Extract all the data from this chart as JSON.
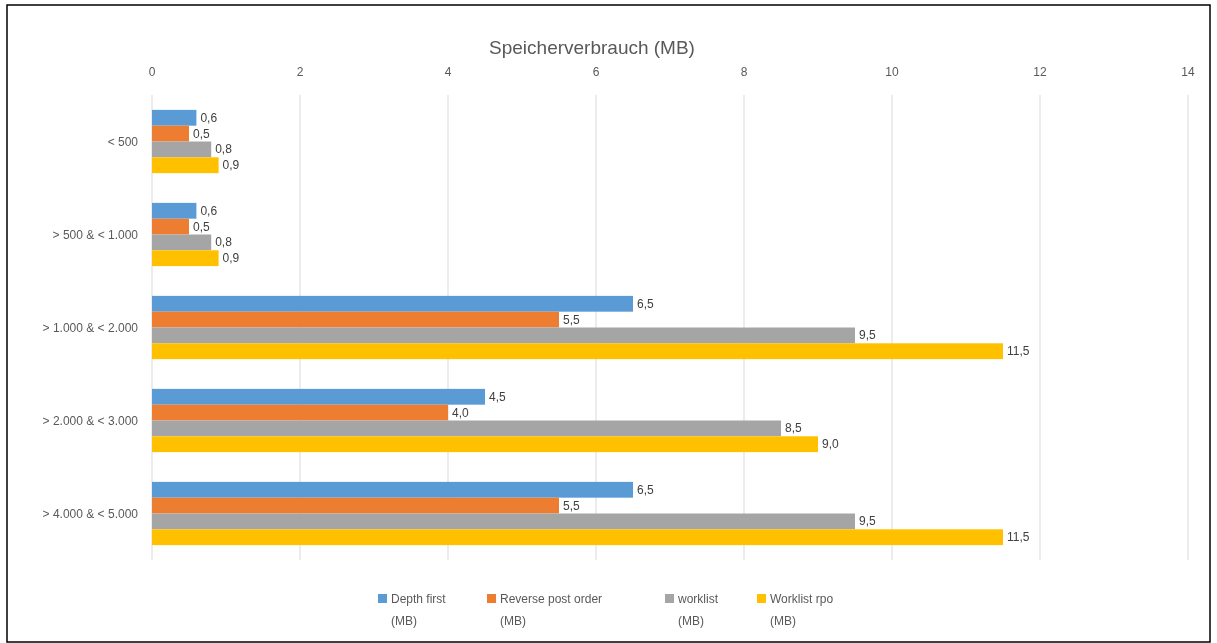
{
  "chart_data": {
    "type": "bar",
    "orientation": "horizontal",
    "title": "Speicherverbrauch (MB)",
    "categories": [
      "< 500",
      "> 500 & < 1.000",
      "> 1.000 & < 2.000",
      "> 2.000 & < 3.000",
      "> 4.000 & < 5.000"
    ],
    "series": [
      {
        "name": "Depth first (MB)",
        "color": "#5b9bd5",
        "values": [
          0.6,
          0.6,
          6.5,
          4.5,
          6.5
        ],
        "value_labels": [
          "0,6",
          "0,6",
          "6,5",
          "4,5",
          "6,5"
        ]
      },
      {
        "name": "Reverse post order (MB)",
        "color": "#ed7d31",
        "values": [
          0.5,
          0.5,
          5.5,
          4.0,
          5.5
        ],
        "value_labels": [
          "0,5",
          "0,5",
          "5,5",
          "4,0",
          "5,5"
        ]
      },
      {
        "name": "worklist (MB)",
        "color": "#a5a5a5",
        "values": [
          0.8,
          0.8,
          9.5,
          8.5,
          9.5
        ],
        "value_labels": [
          "0,8",
          "0,8",
          "9,5",
          "8,5",
          "9,5"
        ]
      },
      {
        "name": "Worklist rpo (MB)",
        "color": "#ffc000",
        "values": [
          0.9,
          0.9,
          11.5,
          9.0,
          11.5
        ],
        "value_labels": [
          "0,9",
          "0,9",
          "11,5",
          "9,0",
          "11,5"
        ]
      }
    ],
    "xlim": [
      0,
      14
    ],
    "xticks": [
      0,
      2,
      4,
      6,
      8,
      10,
      12,
      14
    ],
    "grid": "x",
    "legend": "bottom"
  }
}
